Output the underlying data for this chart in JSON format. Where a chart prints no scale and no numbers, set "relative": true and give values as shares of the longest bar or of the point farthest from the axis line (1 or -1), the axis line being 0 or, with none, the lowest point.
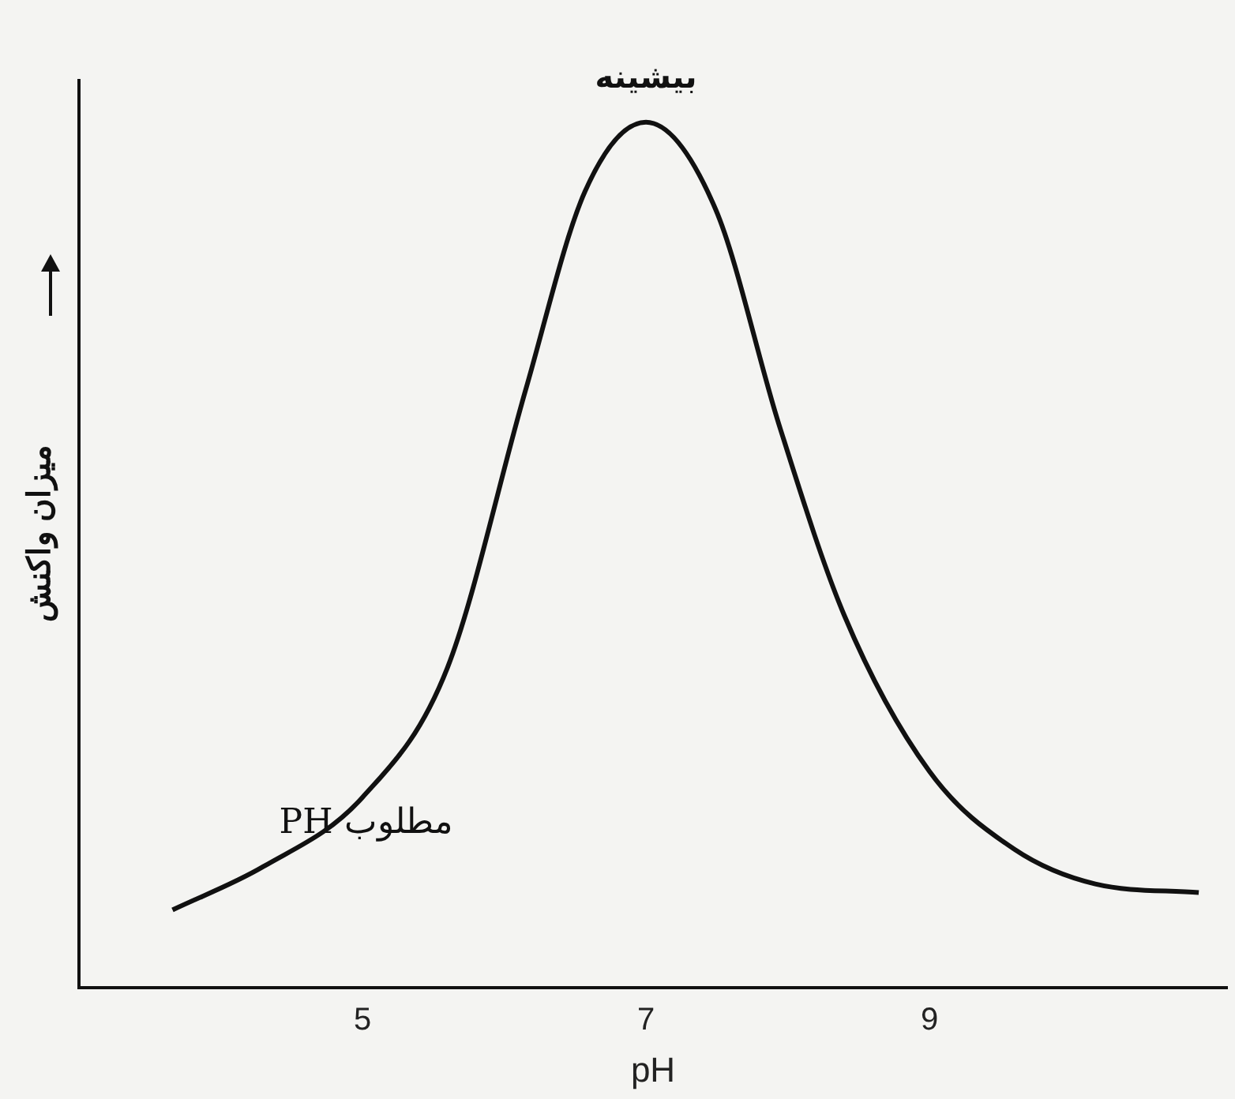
{
  "chart_data": {
    "type": "line",
    "xlabel": "pH",
    "ylabel": "میزان واکنش",
    "relative": true,
    "x": [
      3.66,
      4.3,
      5,
      5.6,
      6.15,
      6.57,
      7,
      7.49,
      7.94,
      8.4,
      9,
      9.6,
      10.17,
      10.9
    ],
    "values": [
      0.09,
      0.14,
      0.22,
      0.37,
      0.69,
      0.92,
      1,
      0.9,
      0.65,
      0.43,
      0.25,
      0.16,
      0.12,
      0.11
    ],
    "color": "#111111",
    "xlim": [
      3,
      11.1
    ],
    "xticks": [
      5,
      7,
      9
    ],
    "grid": false,
    "legend": false,
    "marker": "none",
    "line_style": "solid",
    "annotations": [
      {
        "text": "بیشینه",
        "x": 7,
        "y": 1
      },
      "PH مطلوب"
    ]
  }
}
